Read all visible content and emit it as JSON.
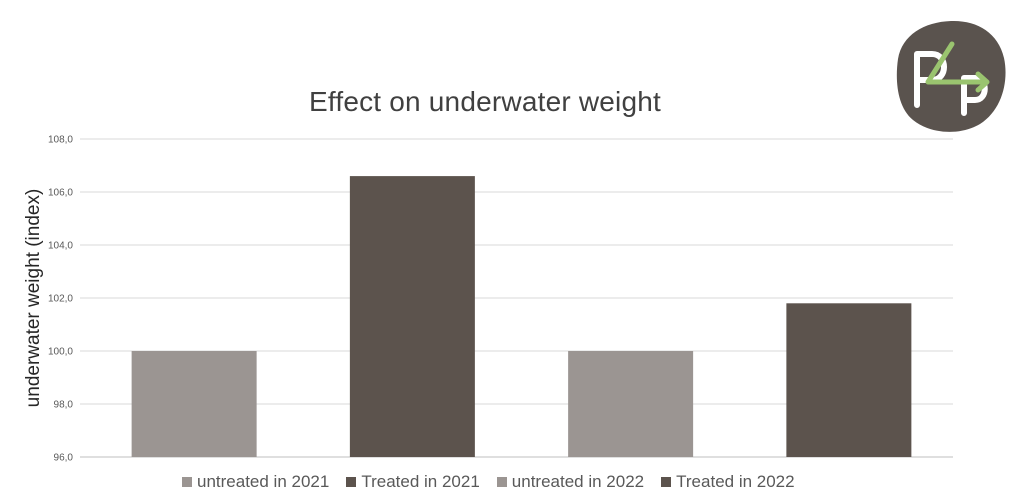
{
  "chart_data": {
    "type": "bar",
    "title": "Effect on underwater weight",
    "xlabel": "",
    "ylabel": "underwater weight (index)",
    "ylim": [
      96,
      108
    ],
    "y_ticks": [
      "96,0",
      "98,0",
      "100,0",
      "102,0",
      "104,0",
      "106,0",
      "108,0"
    ],
    "grid": true,
    "legend_position": "bottom",
    "series": [
      {
        "name": "untreated in 2021",
        "value": 100.0,
        "color": "#9b9592"
      },
      {
        "name": "Treated in 2021",
        "value": 106.6,
        "color": "#5c534d"
      },
      {
        "name": "untreated in 2022",
        "value": 100.0,
        "color": "#9b9592"
      },
      {
        "name": "Treated in 2022",
        "value": 101.8,
        "color": "#5c534d"
      }
    ]
  },
  "logo": {
    "text": "P4P",
    "icon": "p4p-logo-icon",
    "bg_color": "#5a534e",
    "accent_color": "#9ac46f"
  }
}
